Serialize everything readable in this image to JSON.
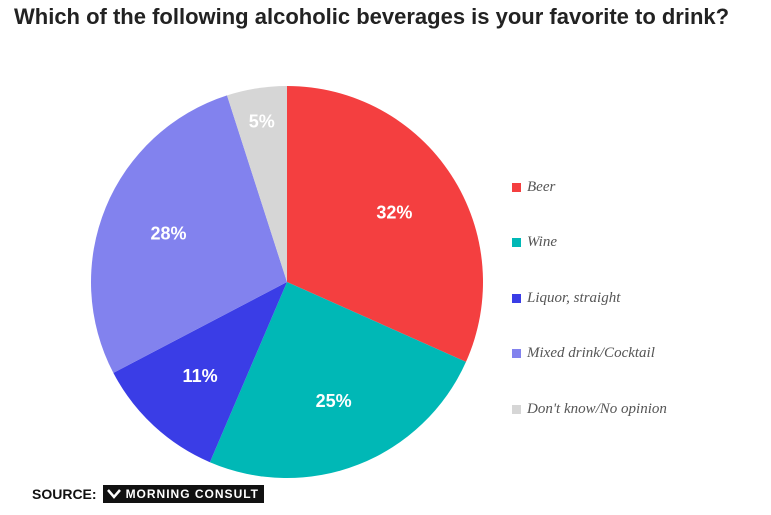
{
  "title": "Which of the following alcoholic beverages is your favorite to drink?",
  "chart_data": {
    "type": "pie",
    "title": "Which of the following alcoholic beverages is your favorite to drink?",
    "categories": [
      "Beer",
      "Wine",
      "Liquor, straight",
      "Mixed drink/Cocktail",
      "Don't know/No opinion"
    ],
    "values": [
      32,
      25,
      11,
      28,
      5
    ],
    "labels": [
      "32%",
      "25%",
      "11%",
      "28%",
      "5%"
    ],
    "colors": [
      "#f43f40",
      "#00b8b6",
      "#3a3de6",
      "#8282ee",
      "#d6d6d6"
    ],
    "legend_position": "right"
  },
  "source": {
    "label": "SOURCE:",
    "brand": "MORNING CONSULT"
  }
}
